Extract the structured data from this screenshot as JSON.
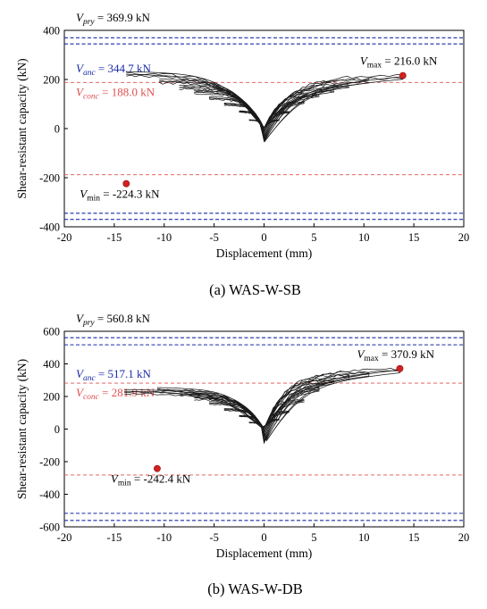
{
  "chart_data": [
    {
      "type": "line",
      "caption": "(a) WAS-W-SB",
      "xlabel": "Displacement (mm)",
      "ylabel": "Shear-resistant capacity (kN)",
      "xlim": [
        -20,
        20
      ],
      "ylim": [
        -400,
        400
      ],
      "xticks": [
        "-20",
        "-15",
        "-10",
        "-5",
        "0",
        "5",
        "10",
        "15",
        "20"
      ],
      "yticks": [
        "400",
        "200",
        "0",
        "-200",
        "-400"
      ],
      "grid": false,
      "reference_lines": [
        {
          "name": "V_pry",
          "text": "= 369.9 kN",
          "sub": "pry",
          "value": 369.9,
          "color": "#1a2aa8",
          "style": "dashed",
          "label_prefix": "V"
        },
        {
          "name": "V_anc",
          "text": "= 344.7 kN",
          "sub": "anc",
          "value": 344.7,
          "color": "#1a2aa8",
          "style": "dashed",
          "label_prefix": "V"
        },
        {
          "name": "V_conc",
          "text": "= 188.0 kN",
          "sub": "conc",
          "value": 188.0,
          "color": "#e05050",
          "style": "dashed",
          "label_prefix": "V"
        }
      ],
      "peaks": [
        {
          "label_prefix": "V",
          "sub": "max",
          "text": "= 216.0 kN",
          "x": 13.9,
          "y": 216.0
        },
        {
          "label_prefix": "V",
          "sub": "min",
          "text": "= -224.3 kN",
          "x": -13.8,
          "y": -224.3
        }
      ],
      "hysteresis": {
        "loops": [
          {
            "xmax": 1.5,
            "ymax": 35,
            "xmin": -1.5,
            "ymin": -35
          },
          {
            "xmax": 2.5,
            "ymax": 70,
            "xmin": -2.5,
            "ymin": -70
          },
          {
            "xmax": 4.0,
            "ymax": 110,
            "xmin": -4.0,
            "ymin": -100
          },
          {
            "xmax": 5.5,
            "ymax": 140,
            "xmin": -5.5,
            "ymin": -125
          },
          {
            "xmax": 7.0,
            "ymax": 160,
            "xmin": -7.0,
            "ymin": -150
          },
          {
            "xmax": 8.5,
            "ymax": 180,
            "xmin": -8.5,
            "ymin": -170
          },
          {
            "xmax": 10.5,
            "ymax": 200,
            "xmin": -10.5,
            "ymin": -195
          },
          {
            "xmax": 13.9,
            "ymax": 216.0,
            "xmin": -13.8,
            "ymin": -224.3
          }
        ]
      }
    },
    {
      "type": "line",
      "caption": "(b) WAS-W-DB",
      "xlabel": "Displacement (mm)",
      "ylabel": "Shear-resistant capacity (kN)",
      "xlim": [
        -20,
        20
      ],
      "ylim": [
        -600,
        600
      ],
      "xticks": [
        "-20",
        "-15",
        "-10",
        "-5",
        "0",
        "5",
        "10",
        "15",
        "20"
      ],
      "yticks": [
        "600",
        "400",
        "200",
        "0",
        "-200",
        "-400",
        "-600"
      ],
      "grid": false,
      "reference_lines": [
        {
          "name": "V_pry",
          "text": "= 560.8 kN",
          "sub": "pry",
          "value": 560.8,
          "color": "#1a2aa8",
          "style": "dashed",
          "label_prefix": "V"
        },
        {
          "name": "V_anc",
          "text": "= 517.1 kN",
          "sub": "anc",
          "value": 517.1,
          "color": "#1a2aa8",
          "style": "dashed",
          "label_prefix": "V"
        },
        {
          "name": "V_conc",
          "text": "= 281.9 kN",
          "sub": "conc",
          "value": 281.9,
          "color": "#e05050",
          "style": "dashed",
          "label_prefix": "V"
        }
      ],
      "peaks": [
        {
          "label_prefix": "V",
          "sub": "max",
          "text": "= 370.9 kN",
          "x": 13.6,
          "y": 370.9
        },
        {
          "label_prefix": "V",
          "sub": "min",
          "text": "= -242.4 kN",
          "x": -10.7,
          "y": -242.4
        }
      ],
      "hysteresis": {
        "loops": [
          {
            "xmax": 1.5,
            "ymax": 60,
            "xmin": -1.5,
            "ymin": -40
          },
          {
            "xmax": 2.5,
            "ymax": 110,
            "xmin": -2.5,
            "ymin": -80
          },
          {
            "xmax": 4.0,
            "ymax": 180,
            "xmin": -4.0,
            "ymin": -120
          },
          {
            "xmax": 5.5,
            "ymax": 250,
            "xmin": -5.5,
            "ymin": -160
          },
          {
            "xmax": 7.0,
            "ymax": 300,
            "xmin": -7.0,
            "ymin": -190
          },
          {
            "xmax": 8.5,
            "ymax": 330,
            "xmin": -8.5,
            "ymin": -215
          },
          {
            "xmax": 10.5,
            "ymax": 350,
            "xmin": -10.7,
            "ymin": -242.4
          },
          {
            "xmax": 13.6,
            "ymax": 370.9,
            "xmin": -14.0,
            "ymin": -230
          }
        ]
      }
    }
  ]
}
